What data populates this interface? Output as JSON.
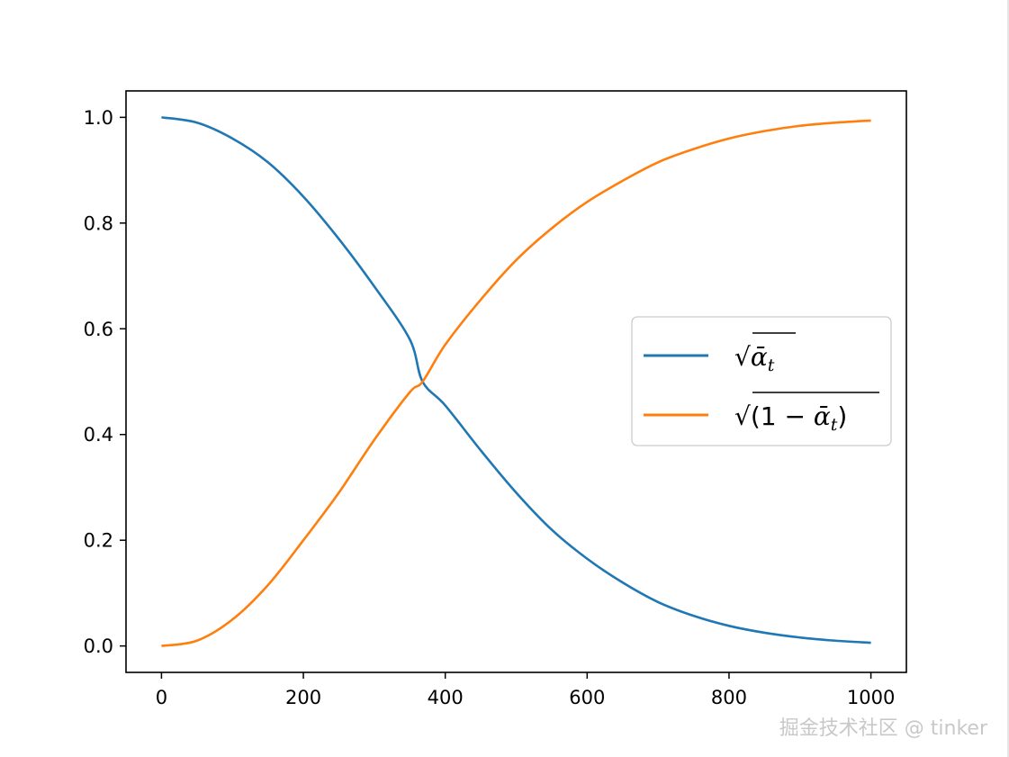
{
  "chart_data": {
    "type": "line",
    "title": "",
    "xlabel": "",
    "ylabel": "",
    "xlim": [
      -50,
      1050
    ],
    "ylim": [
      -0.05,
      1.05
    ],
    "x_ticks": [
      0,
      200,
      400,
      600,
      800,
      1000
    ],
    "x_tick_labels": [
      "0",
      "200",
      "400",
      "600",
      "800",
      "1000"
    ],
    "y_ticks": [
      0.0,
      0.2,
      0.4,
      0.6,
      0.8,
      1.0
    ],
    "y_tick_labels": [
      "0.0",
      "0.2",
      "0.4",
      "0.6",
      "0.8",
      "1.0"
    ],
    "grid": false,
    "legend_position": "center-right",
    "x": [
      0,
      50,
      100,
      150,
      200,
      250,
      300,
      350,
      368,
      400,
      450,
      500,
      550,
      600,
      650,
      700,
      750,
      800,
      850,
      900,
      950,
      1000
    ],
    "series": [
      {
        "id": "sqrt_alpha_bar",
        "legend": {
          "sqrt": "√",
          "sym": "ᾱ",
          "sub": "t"
        },
        "color": "#1f77b4",
        "values": [
          1.0,
          0.99,
          0.96,
          0.915,
          0.85,
          0.77,
          0.68,
          0.58,
          0.5,
          0.455,
          0.37,
          0.29,
          0.22,
          0.165,
          0.12,
          0.083,
          0.057,
          0.038,
          0.025,
          0.016,
          0.01,
          0.006
        ]
      },
      {
        "id": "sqrt_one_minus_alpha_bar",
        "legend": {
          "sqrt": "√",
          "open": "(1 − ",
          "sym": "ᾱ",
          "sub": "t",
          "close": ")"
        },
        "color": "#ff7f0e",
        "values": [
          0.0,
          0.01,
          0.05,
          0.115,
          0.2,
          0.29,
          0.39,
          0.48,
          0.5,
          0.57,
          0.655,
          0.73,
          0.79,
          0.84,
          0.88,
          0.915,
          0.94,
          0.96,
          0.974,
          0.984,
          0.99,
          0.994
        ]
      }
    ]
  },
  "watermark": "掘金技术社区 @ tinker"
}
